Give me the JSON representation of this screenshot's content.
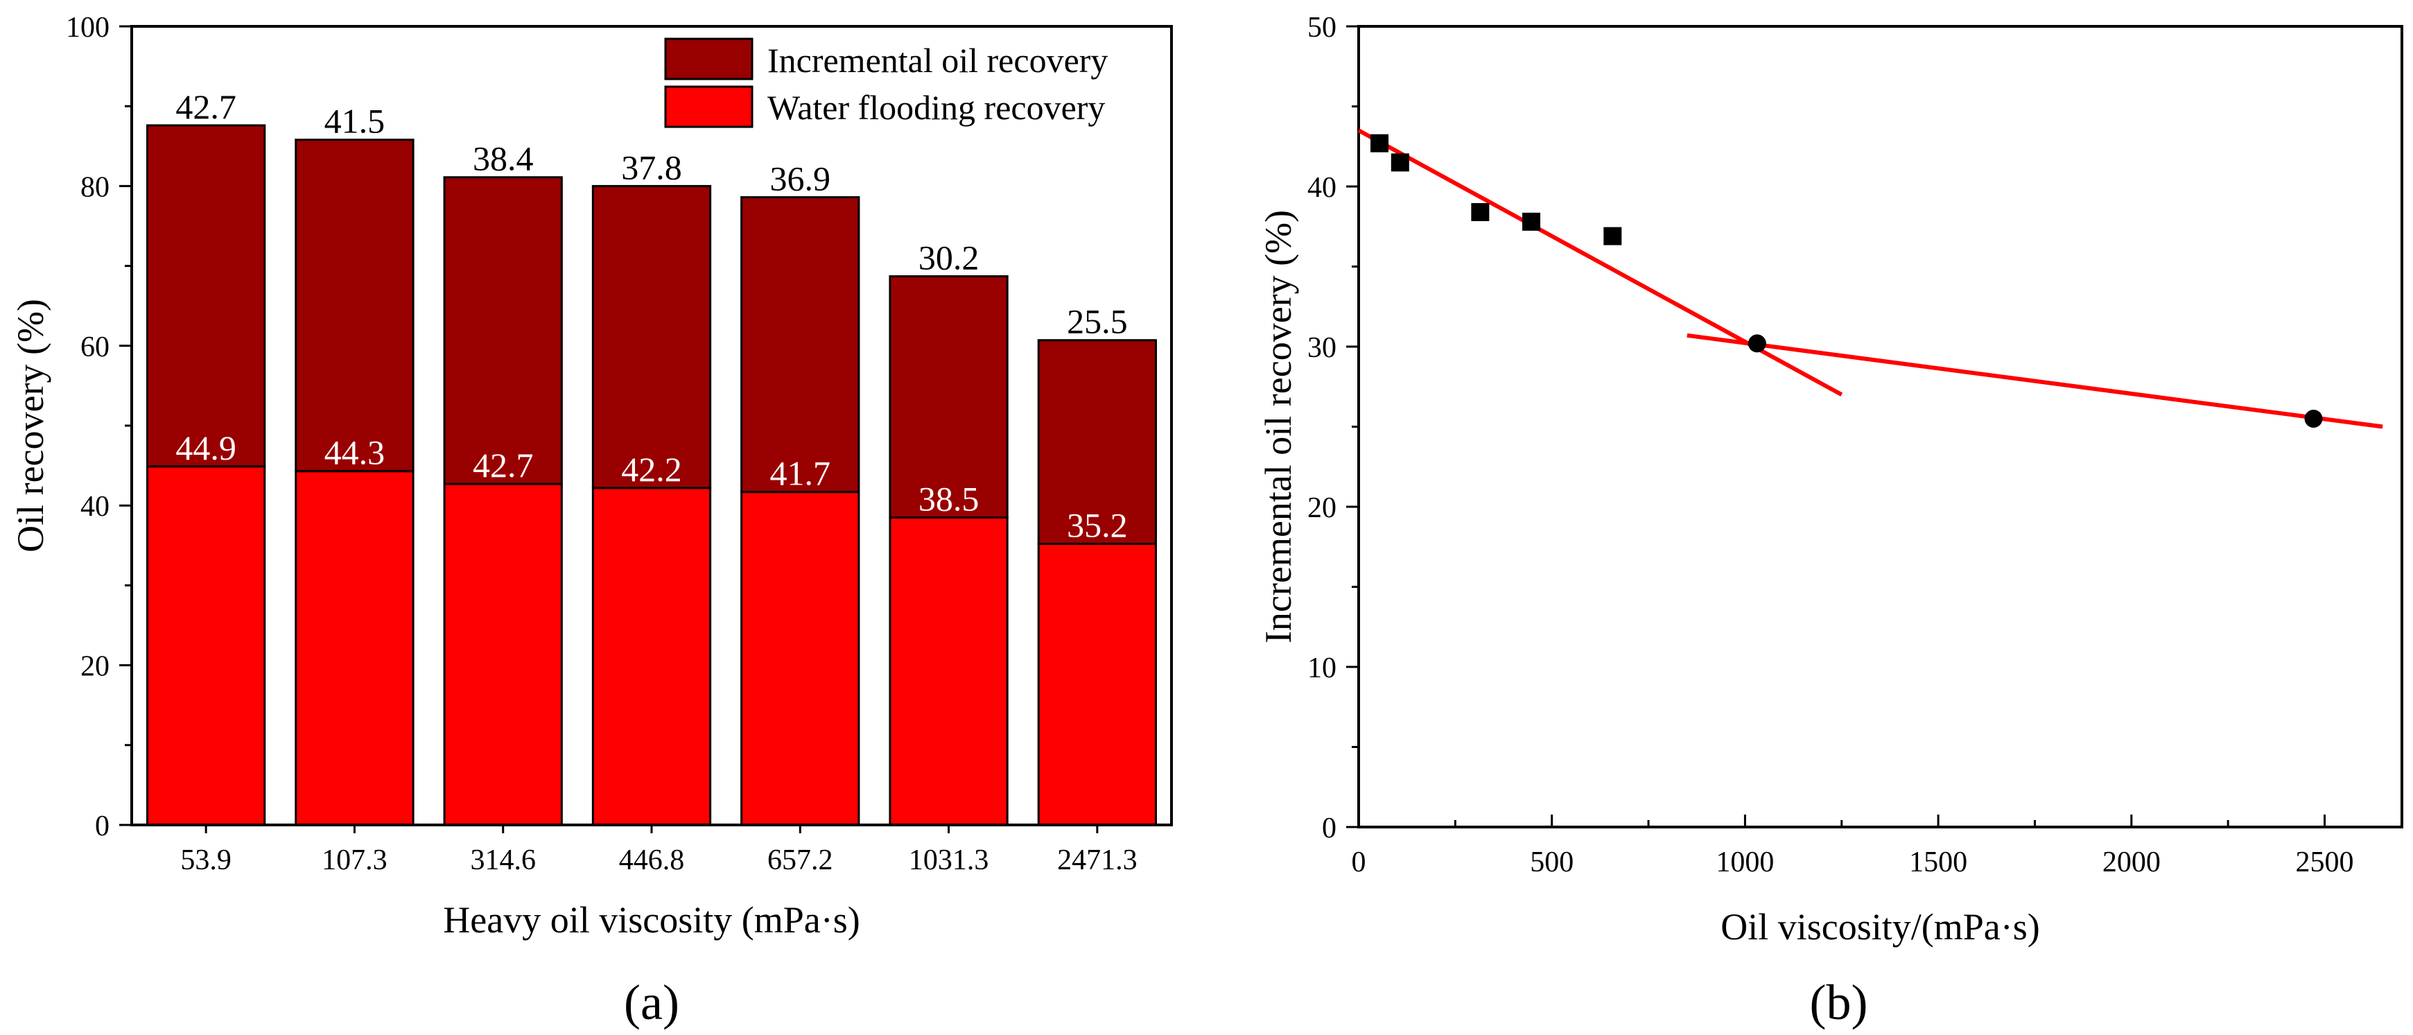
{
  "chart_data": [
    {
      "type": "bar",
      "stacked": true,
      "panel_label": "(a)",
      "categories": [
        "53.9",
        "107.3",
        "314.6",
        "446.8",
        "657.2",
        "1031.3",
        "2471.3"
      ],
      "series": [
        {
          "name": "Water flooding recovery",
          "values": [
            44.9,
            44.3,
            42.7,
            42.2,
            41.7,
            38.5,
            35.2
          ],
          "color": "#ff0000",
          "label_color": "#ffffff"
        },
        {
          "name": "Incremental oil recovery",
          "values": [
            42.7,
            41.5,
            38.4,
            37.8,
            36.9,
            30.2,
            25.5
          ],
          "color": "#990000",
          "label_color": "#000000"
        }
      ],
      "xlabel": "Heavy oil viscosity (mPa·s)",
      "ylabel": "Oil recovery (%)",
      "ylim": [
        0,
        100
      ],
      "yticks": [
        0,
        20,
        40,
        60,
        80,
        100
      ],
      "legend": "top-right",
      "grid": false
    },
    {
      "type": "scatter",
      "panel_label": "(b)",
      "series": [
        {
          "name": "",
          "marker": "square",
          "color": "#000000",
          "x": [
            53.9,
            107.3,
            314.6,
            446.8,
            657.2
          ],
          "y": [
            42.7,
            41.5,
            38.4,
            37.8,
            36.9
          ]
        },
        {
          "name": "",
          "marker": "circle",
          "color": "#000000",
          "x": [
            1031.3,
            2471.3
          ],
          "y": [
            30.2,
            25.5
          ]
        }
      ],
      "trend_lines": [
        {
          "color": "#ff0000",
          "x": [
            0,
            1250
          ],
          "y": [
            43.5,
            27.0
          ]
        },
        {
          "color": "#ff0000",
          "x": [
            850,
            2650
          ],
          "y": [
            30.7,
            25.0
          ]
        }
      ],
      "xlabel": "Oil viscosity/(mPa·s)",
      "ylabel": "Incremental oil recovery (%)",
      "xlim": [
        0,
        2700
      ],
      "ylim": [
        0,
        50
      ],
      "xticks": [
        0,
        500,
        1000,
        1500,
        2000,
        2500
      ],
      "yticks": [
        0,
        10,
        20,
        30,
        40,
        50
      ],
      "legend": "none",
      "grid": false
    }
  ]
}
